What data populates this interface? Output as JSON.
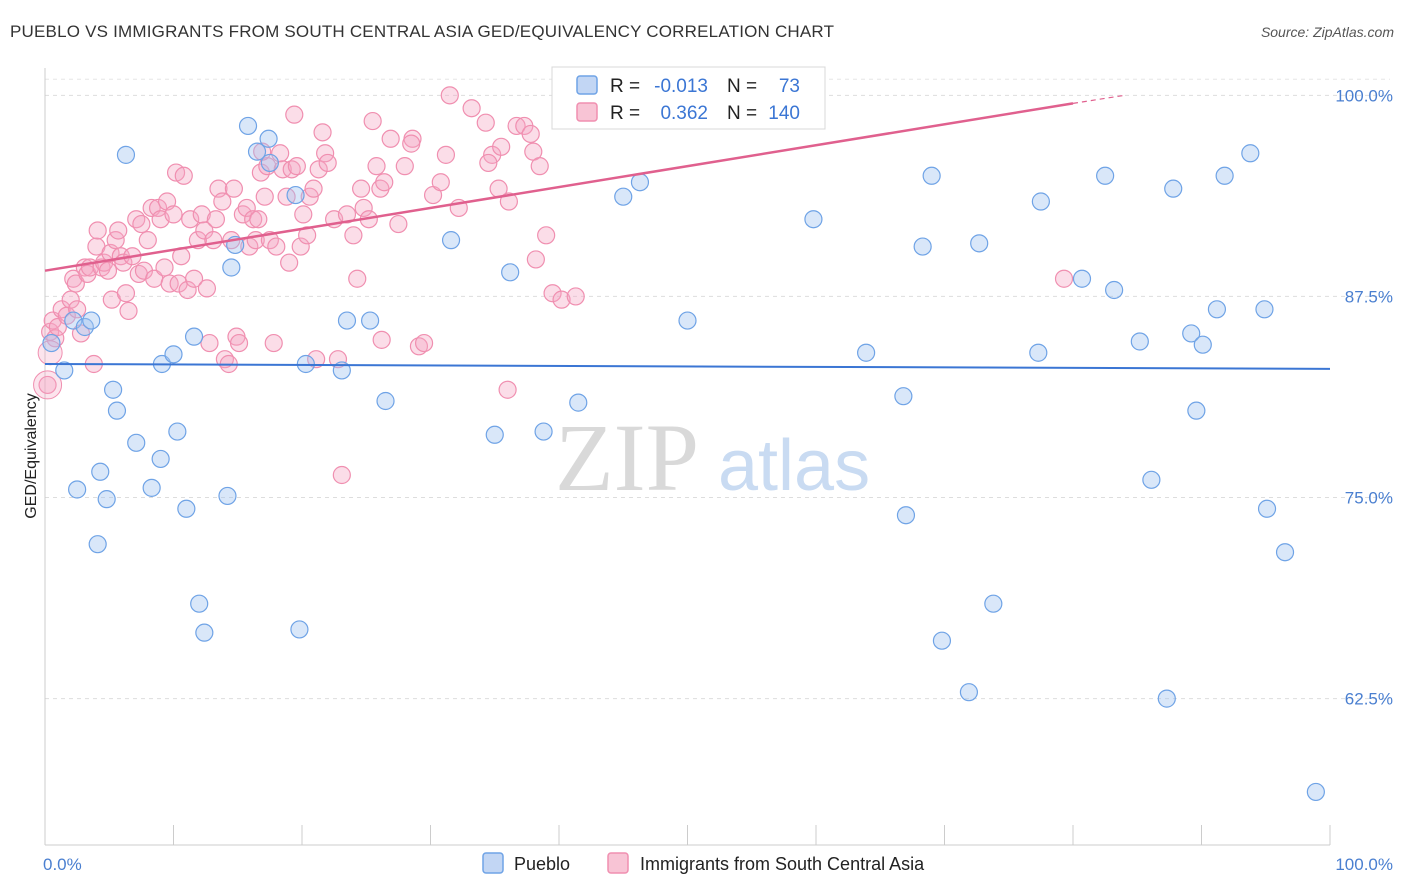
{
  "header": {
    "title": "PUEBLO VS IMMIGRANTS FROM SOUTH CENTRAL ASIA GED/EQUIVALENCY CORRELATION CHART",
    "source": "Source: ZipAtlas.com"
  },
  "watermark": {
    "zip": "ZIP",
    "atlas": "atlas"
  },
  "legend": {
    "r_label": "R =",
    "n_label": "N =",
    "rows": [
      {
        "r": "-0.013",
        "n": "73",
        "color": "#6fa3e6"
      },
      {
        "r": "0.362",
        "n": "140",
        "color": "#f08fb0"
      }
    ]
  },
  "bottom_legend": [
    {
      "label": "Pueblo",
      "color": "#6fa3e6"
    },
    {
      "label": "Immigrants from South Central Asia",
      "color": "#f08fb0"
    }
  ],
  "chart_data": {
    "type": "scatter",
    "ylabel": "GED/Equivalency",
    "xlabel": "",
    "xlim": [
      0,
      100
    ],
    "ylim": [
      53.4,
      101.7
    ],
    "x_tick_labels": [
      "0.0%",
      "100.0%"
    ],
    "y_ticks": [
      62.5,
      75.0,
      87.5,
      100.0
    ],
    "y_tick_labels": [
      "62.5%",
      "75.0%",
      "87.5%",
      "100.0%"
    ],
    "grid": true,
    "colors": {
      "pueblo": "#6fa3e6",
      "pueblo_line": "#3b76d4",
      "immigrants": "#f08fb0",
      "immigrants_line": "#e0608e"
    },
    "series": [
      {
        "name": "Pueblo",
        "trend": {
          "x": [
            0,
            100
          ],
          "y": [
            83.3,
            83.0
          ]
        },
        "points": [
          [
            0.5,
            84.6
          ],
          [
            1.5,
            82.9
          ],
          [
            2.2,
            86.0
          ],
          [
            2.5,
            75.5
          ],
          [
            3.1,
            85.6
          ],
          [
            3.6,
            86.0
          ],
          [
            4.1,
            72.1
          ],
          [
            4.3,
            76.6
          ],
          [
            4.8,
            74.9
          ],
          [
            5.3,
            81.7
          ],
          [
            5.6,
            80.4
          ],
          [
            6.3,
            96.3
          ],
          [
            7.1,
            78.4
          ],
          [
            8.3,
            75.6
          ],
          [
            9.0,
            77.4
          ],
          [
            9.1,
            83.3
          ],
          [
            10.0,
            83.9
          ],
          [
            10.3,
            79.1
          ],
          [
            11.0,
            74.3
          ],
          [
            11.6,
            85.0
          ],
          [
            12.0,
            68.4
          ],
          [
            12.4,
            66.6
          ],
          [
            14.2,
            75.1
          ],
          [
            14.5,
            89.3
          ],
          [
            14.8,
            90.7
          ],
          [
            15.8,
            98.1
          ],
          [
            16.5,
            96.5
          ],
          [
            17.4,
            97.3
          ],
          [
            17.5,
            95.8
          ],
          [
            19.5,
            93.8
          ],
          [
            19.8,
            66.8
          ],
          [
            20.3,
            83.3
          ],
          [
            23.1,
            82.9
          ],
          [
            23.5,
            86.0
          ],
          [
            25.3,
            86.0
          ],
          [
            31.6,
            91.0
          ],
          [
            35.0,
            78.9
          ],
          [
            36.2,
            89.0
          ],
          [
            38.8,
            79.1
          ],
          [
            41.5,
            80.9
          ],
          [
            45.0,
            93.7
          ],
          [
            46.3,
            94.6
          ],
          [
            59.8,
            92.3
          ],
          [
            63.9,
            84.0
          ],
          [
            66.8,
            81.3
          ],
          [
            68.3,
            90.6
          ],
          [
            69.0,
            95.0
          ],
          [
            69.8,
            66.1
          ],
          [
            71.9,
            62.9
          ],
          [
            72.7,
            90.8
          ],
          [
            73.8,
            68.4
          ],
          [
            77.3,
            84.0
          ],
          [
            77.5,
            93.4
          ],
          [
            80.7,
            88.6
          ],
          [
            82.5,
            95.0
          ],
          [
            83.2,
            87.9
          ],
          [
            85.2,
            84.7
          ],
          [
            86.1,
            76.1
          ],
          [
            87.3,
            62.5
          ],
          [
            87.8,
            94.2
          ],
          [
            89.2,
            85.2
          ],
          [
            89.6,
            80.4
          ],
          [
            90.1,
            84.5
          ],
          [
            91.2,
            86.7
          ],
          [
            91.8,
            95.0
          ],
          [
            93.8,
            96.4
          ],
          [
            94.9,
            86.7
          ],
          [
            95.1,
            74.3
          ],
          [
            96.5,
            71.6
          ],
          [
            98.9,
            56.7
          ],
          [
            67.0,
            73.9
          ],
          [
            26.5,
            81.0
          ],
          [
            50.0,
            86.0
          ]
        ]
      },
      {
        "name": "Immigrants from South Central Asia",
        "trend": {
          "x": [
            0,
            80
          ],
          "y": [
            89.1,
            99.5
          ]
        },
        "trend_dashed": {
          "x": [
            80,
            84
          ],
          "y": [
            99.5,
            100.0
          ]
        },
        "points": [
          [
            0.2,
            82.0
          ],
          [
            0.4,
            85.3
          ],
          [
            0.6,
            86.0
          ],
          [
            0.8,
            84.9
          ],
          [
            1.0,
            85.6
          ],
          [
            1.3,
            86.7
          ],
          [
            1.7,
            86.3
          ],
          [
            2.0,
            87.3
          ],
          [
            2.2,
            88.6
          ],
          [
            2.4,
            88.3
          ],
          [
            2.5,
            86.7
          ],
          [
            2.8,
            85.2
          ],
          [
            3.1,
            89.3
          ],
          [
            3.3,
            88.9
          ],
          [
            3.5,
            89.3
          ],
          [
            3.8,
            83.3
          ],
          [
            4.0,
            90.6
          ],
          [
            4.1,
            91.6
          ],
          [
            4.4,
            89.3
          ],
          [
            4.6,
            89.6
          ],
          [
            4.9,
            89.1
          ],
          [
            5.1,
            90.2
          ],
          [
            5.2,
            87.3
          ],
          [
            5.5,
            91.0
          ],
          [
            5.7,
            91.6
          ],
          [
            5.9,
            90.0
          ],
          [
            6.1,
            89.6
          ],
          [
            6.3,
            87.7
          ],
          [
            6.5,
            86.6
          ],
          [
            6.8,
            90.0
          ],
          [
            7.1,
            92.3
          ],
          [
            7.3,
            88.9
          ],
          [
            7.5,
            92.0
          ],
          [
            7.7,
            89.1
          ],
          [
            8.0,
            91.0
          ],
          [
            8.3,
            93.0
          ],
          [
            8.5,
            88.6
          ],
          [
            8.8,
            93.0
          ],
          [
            9.0,
            92.3
          ],
          [
            9.3,
            89.3
          ],
          [
            9.5,
            93.4
          ],
          [
            9.7,
            88.3
          ],
          [
            10.0,
            92.6
          ],
          [
            10.2,
            95.2
          ],
          [
            10.4,
            88.3
          ],
          [
            10.6,
            90.0
          ],
          [
            10.8,
            95.0
          ],
          [
            11.1,
            87.9
          ],
          [
            11.3,
            92.3
          ],
          [
            11.6,
            88.6
          ],
          [
            11.9,
            91.0
          ],
          [
            12.2,
            92.6
          ],
          [
            12.4,
            91.6
          ],
          [
            12.6,
            88.0
          ],
          [
            12.8,
            84.6
          ],
          [
            13.1,
            91.0
          ],
          [
            13.3,
            92.3
          ],
          [
            13.5,
            94.2
          ],
          [
            13.8,
            93.4
          ],
          [
            14.0,
            83.6
          ],
          [
            14.3,
            83.3
          ],
          [
            14.5,
            91.0
          ],
          [
            14.7,
            94.2
          ],
          [
            14.9,
            85.0
          ],
          [
            15.1,
            84.6
          ],
          [
            15.4,
            92.6
          ],
          [
            15.7,
            93.0
          ],
          [
            15.9,
            90.6
          ],
          [
            16.2,
            92.3
          ],
          [
            16.4,
            91.0
          ],
          [
            16.6,
            92.3
          ],
          [
            16.8,
            95.2
          ],
          [
            17.1,
            93.7
          ],
          [
            17.3,
            95.6
          ],
          [
            17.5,
            91.0
          ],
          [
            17.8,
            84.6
          ],
          [
            18.0,
            90.6
          ],
          [
            18.3,
            96.4
          ],
          [
            18.5,
            95.4
          ],
          [
            18.8,
            93.7
          ],
          [
            19.0,
            89.6
          ],
          [
            19.2,
            95.4
          ],
          [
            19.4,
            98.8
          ],
          [
            19.6,
            95.6
          ],
          [
            19.9,
            90.6
          ],
          [
            20.1,
            92.6
          ],
          [
            20.4,
            91.3
          ],
          [
            20.6,
            93.7
          ],
          [
            20.9,
            94.2
          ],
          [
            21.1,
            83.6
          ],
          [
            21.3,
            95.4
          ],
          [
            21.6,
            97.7
          ],
          [
            21.8,
            96.4
          ],
          [
            22.0,
            95.8
          ],
          [
            22.5,
            92.3
          ],
          [
            23.1,
            76.4
          ],
          [
            23.5,
            92.6
          ],
          [
            24.0,
            91.3
          ],
          [
            24.3,
            88.6
          ],
          [
            24.6,
            94.2
          ],
          [
            24.8,
            93.0
          ],
          [
            25.2,
            92.3
          ],
          [
            25.5,
            98.4
          ],
          [
            25.8,
            95.6
          ],
          [
            26.1,
            94.2
          ],
          [
            26.4,
            94.6
          ],
          [
            26.9,
            97.3
          ],
          [
            27.5,
            92.0
          ],
          [
            28.0,
            95.6
          ],
          [
            28.6,
            97.3
          ],
          [
            29.1,
            84.4
          ],
          [
            29.5,
            84.6
          ],
          [
            30.2,
            93.8
          ],
          [
            30.8,
            94.6
          ],
          [
            31.2,
            96.3
          ],
          [
            31.5,
            100.0
          ],
          [
            32.2,
            93.0
          ],
          [
            33.2,
            99.2
          ],
          [
            34.3,
            98.3
          ],
          [
            34.8,
            96.3
          ],
          [
            35.3,
            94.2
          ],
          [
            35.5,
            96.8
          ],
          [
            36.1,
            93.4
          ],
          [
            36.7,
            98.1
          ],
          [
            37.3,
            98.1
          ],
          [
            37.8,
            97.6
          ],
          [
            38.0,
            96.5
          ],
          [
            38.5,
            95.6
          ],
          [
            39.0,
            91.3
          ],
          [
            39.5,
            87.7
          ],
          [
            40.2,
            87.3
          ],
          [
            41.3,
            87.5
          ],
          [
            36.0,
            81.7
          ],
          [
            38.2,
            89.8
          ],
          [
            34.5,
            95.8
          ],
          [
            26.2,
            84.8
          ],
          [
            79.3,
            88.6
          ],
          [
            28.5,
            97.0
          ],
          [
            22.8,
            83.6
          ],
          [
            16.9,
            96.5
          ]
        ]
      }
    ]
  }
}
